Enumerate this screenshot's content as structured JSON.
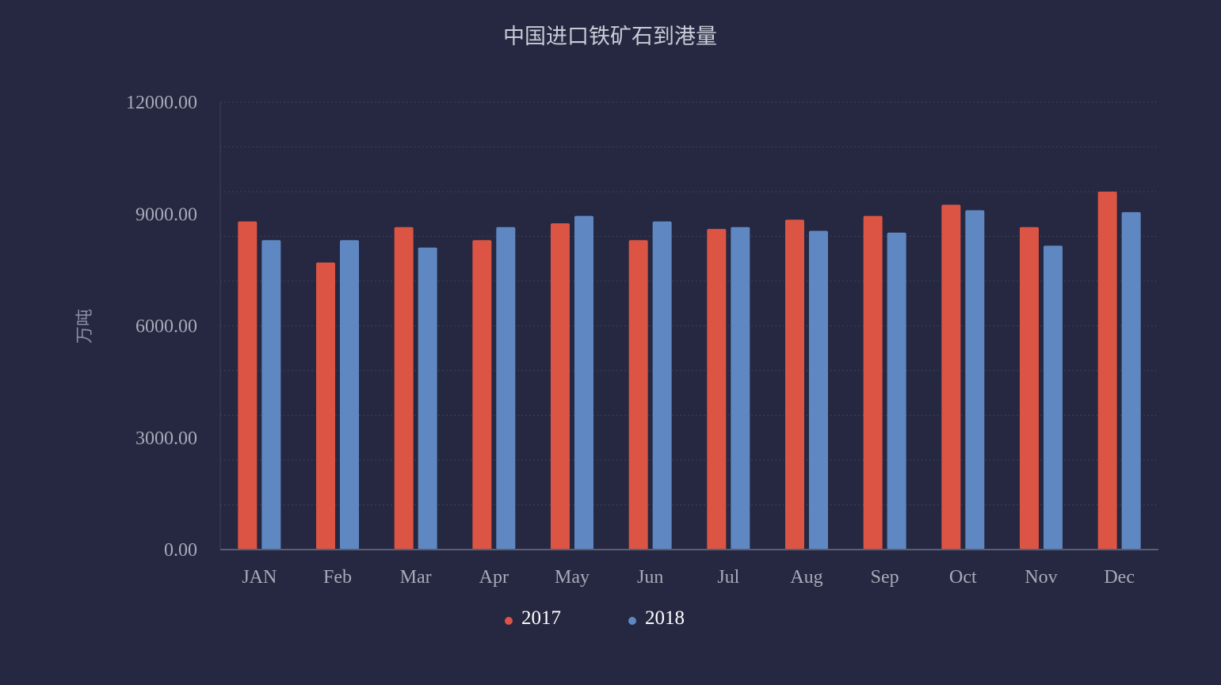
{
  "chart_data": {
    "type": "bar",
    "title": "中国进口铁矿石到港量",
    "ylabel": "万吨",
    "xlabel": "",
    "ylim": [
      0,
      12000
    ],
    "yticks": [
      "12000.00",
      "9000.00",
      "6000.00",
      "3000.00",
      "0.00"
    ],
    "ytick_values": [
      12000,
      9000,
      6000,
      3000,
      0
    ],
    "grid": true,
    "legend_position": "bottom-center",
    "categories": [
      "JAN",
      "Feb",
      "Mar",
      "Apr",
      "May",
      "Jun",
      "Jul",
      "Aug",
      "Sep",
      "Oct",
      "Nov",
      "Dec"
    ],
    "series": [
      {
        "name": "2017",
        "color": "#dc5444",
        "values": [
          8800,
          7700,
          8650,
          8300,
          8750,
          8300,
          8600,
          8850,
          8950,
          9250,
          8650,
          9600
        ]
      },
      {
        "name": "2018",
        "color": "#5f88c3",
        "values": [
          8300,
          8300,
          8100,
          8650,
          8950,
          8800,
          8650,
          8550,
          8500,
          9100,
          8150,
          9050
        ]
      }
    ]
  },
  "colors": {
    "background": "#252840",
    "grid": "#3c4057",
    "axis": "#5a5f76"
  }
}
